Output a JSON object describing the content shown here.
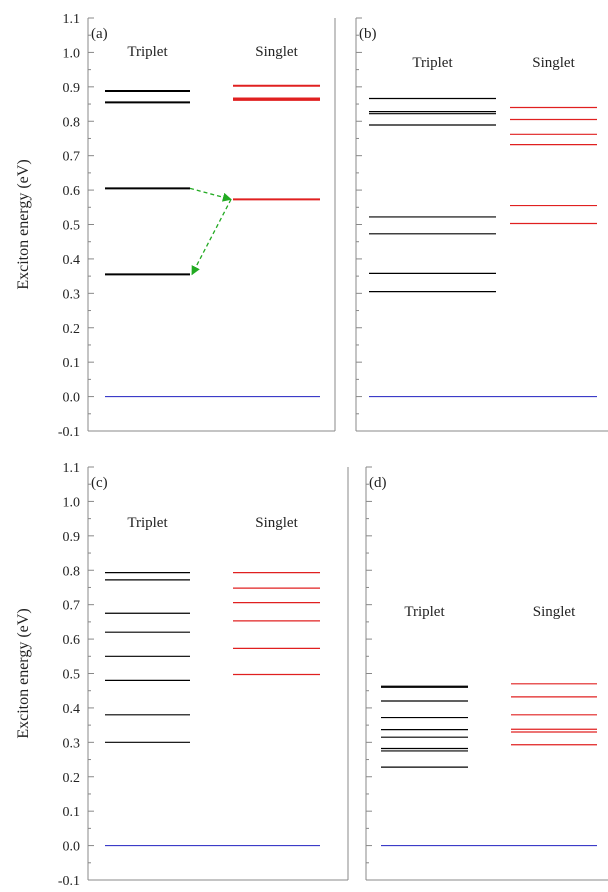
{
  "chart_data": [
    {
      "type": "energy-level",
      "panel_label": "(a)",
      "ylabel": "Exciton energy (eV)",
      "ylim": [
        -0.1,
        1.1
      ],
      "yticks": [
        "-0.1",
        "0.0",
        "0.1",
        "0.2",
        "0.3",
        "0.4",
        "0.5",
        "0.6",
        "0.7",
        "0.8",
        "0.9",
        "1.0",
        "1.1"
      ],
      "show_y_tick_labels": true,
      "ground_level": 0.0,
      "series": [
        {
          "name": "Triplet",
          "color": "#000000",
          "levels": [
            0.355,
            0.605,
            0.855,
            0.888
          ]
        },
        {
          "name": "Singlet",
          "color": "#e02020",
          "levels": [
            0.573,
            0.862,
            0.866,
            0.903
          ]
        }
      ],
      "arrows": [
        {
          "from": {
            "series": 0,
            "energy": 0.605
          },
          "to": {
            "series": 1,
            "energy": 0.573
          },
          "color": "#22aa22"
        },
        {
          "from": {
            "series": 1,
            "energy": 0.573
          },
          "to": {
            "series": 0,
            "energy": 0.355
          },
          "color": "#22aa22"
        }
      ]
    },
    {
      "type": "energy-level",
      "panel_label": "(b)",
      "ylim": [
        -0.1,
        1.1
      ],
      "show_y_tick_labels": false,
      "ground_level": 0.0,
      "series": [
        {
          "name": "Triplet",
          "color": "#000000",
          "levels": [
            0.305,
            0.358,
            0.473,
            0.522,
            0.789,
            0.822,
            0.828,
            0.866
          ]
        },
        {
          "name": "Singlet",
          "color": "#e02020",
          "levels": [
            0.503,
            0.555,
            0.732,
            0.762,
            0.805,
            0.84
          ]
        }
      ]
    },
    {
      "type": "energy-level",
      "panel_label": "(c)",
      "ylabel": "Exciton energy (eV)",
      "ylim": [
        -0.1,
        1.1
      ],
      "yticks": [
        "-0.1",
        "0.0",
        "0.1",
        "0.2",
        "0.3",
        "0.4",
        "0.5",
        "0.6",
        "0.7",
        "0.8",
        "0.9",
        "1.0",
        "1.1"
      ],
      "show_y_tick_labels": true,
      "ground_level": 0.0,
      "series": [
        {
          "name": "Triplet",
          "color": "#000000",
          "levels": [
            0.3,
            0.38,
            0.48,
            0.55,
            0.62,
            0.675,
            0.772,
            0.793
          ]
        },
        {
          "name": "Singlet",
          "color": "#e02020",
          "levels": [
            0.497,
            0.573,
            0.653,
            0.706,
            0.748,
            0.793
          ]
        }
      ]
    },
    {
      "type": "energy-level",
      "panel_label": "(d)",
      "ylim": [
        -0.1,
        1.1
      ],
      "show_y_tick_labels": false,
      "ground_level": 0.0,
      "series": [
        {
          "name": "Triplet",
          "color": "#000000",
          "levels": [
            0.228,
            0.275,
            0.282,
            0.315,
            0.337,
            0.372,
            0.42,
            0.46,
            0.463
          ]
        },
        {
          "name": "Singlet",
          "color": "#e02020",
          "levels": [
            0.293,
            0.33,
            0.338,
            0.38,
            0.432,
            0.47
          ]
        }
      ]
    }
  ],
  "colors": {
    "ground_level": "#2020c0",
    "axis": "#888888"
  }
}
